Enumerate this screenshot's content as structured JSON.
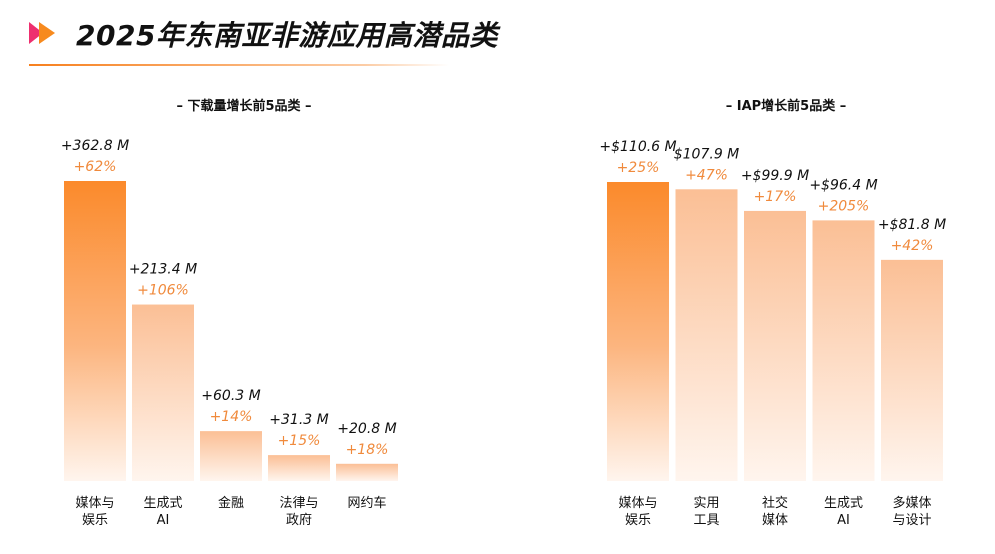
{
  "page": {
    "title": "2025年东南亚非游应用高潜品类"
  },
  "colors": {
    "accent": "#f7801e",
    "logo_pink": "#ee2f6f",
    "logo_orange": "#f78a1e",
    "bar_top": "#fb8a2b",
    "bar_light_top": "#fbbf95",
    "bar_bottom": "#fff5ee",
    "percent_text": "#f08a3c"
  },
  "chart_data": [
    {
      "type": "bar",
      "title": "– 下载量增长前5品类 –",
      "categories": [
        [
          "媒体与",
          "娱乐"
        ],
        [
          "生成式",
          "AI"
        ],
        [
          "金融"
        ],
        [
          "法律与",
          "政府"
        ],
        [
          "网约车"
        ]
      ],
      "values": [
        362.8,
        213.4,
        60.3,
        31.3,
        20.8
      ],
      "value_labels": [
        "+362.8 M",
        "+213.4 M",
        "+60.3 M",
        "+31.3 M",
        "+20.8 M"
      ],
      "growth_labels": [
        "+62%",
        "+106%",
        "+14%",
        "+15%",
        "+18%"
      ],
      "ylim": [
        0,
        362.8
      ],
      "highlight_first": true
    },
    {
      "type": "bar",
      "title": "– IAP增长前5品类 –",
      "categories": [
        [
          "媒体与",
          "娱乐"
        ],
        [
          "实用",
          "工具"
        ],
        [
          "社交",
          "媒体"
        ],
        [
          "生成式",
          "AI"
        ],
        [
          "多媒体",
          "与设计"
        ]
      ],
      "values": [
        110.6,
        107.9,
        99.9,
        96.4,
        81.8
      ],
      "value_labels": [
        "+$110.6 M",
        "$107.9 M",
        "+$99.9 M",
        "+$96.4 M",
        "+$81.8 M"
      ],
      "growth_labels": [
        "+25%",
        "+47%",
        "+17%",
        "+205%",
        "+42%"
      ],
      "ylim": [
        0,
        110.6
      ],
      "highlight_first": true
    }
  ]
}
